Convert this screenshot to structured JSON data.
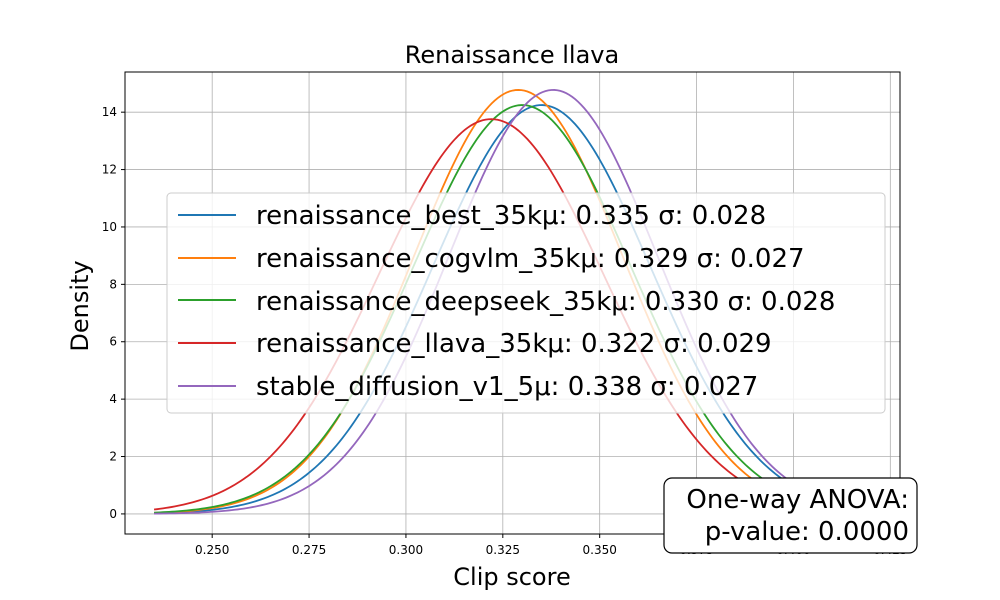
{
  "chart_data": {
    "type": "line",
    "title": "Renaissance llava",
    "xlabel": "Clip score",
    "ylabel": "Density",
    "xlim": [
      0.2275,
      0.4275
    ],
    "ylim": [
      -0.7,
      15.4
    ],
    "xticks": [
      0.25,
      0.275,
      0.3,
      0.325,
      0.35,
      0.375,
      0.4,
      0.425
    ],
    "xtick_labels": [
      "0.250",
      "0.275",
      "0.300",
      "0.325",
      "0.350",
      "0.375",
      "0.400",
      "0.425"
    ],
    "yticks": [
      0,
      2,
      4,
      6,
      8,
      10,
      12,
      14
    ],
    "ytick_labels": [
      "0",
      "2",
      "4",
      "6",
      "8",
      "10",
      "12",
      "14"
    ],
    "grid": true,
    "x_range": [
      0.235,
      0.42
    ],
    "legend_position": "center",
    "series": [
      {
        "name": "renaissance_best_35k",
        "mean": 0.335,
        "std": 0.028,
        "color": "#1f77b4",
        "label": "renaissance_best_35kμ: 0.335 σ: 0.028"
      },
      {
        "name": "renaissance_cogvlm_35k",
        "mean": 0.329,
        "std": 0.027,
        "color": "#ff7f0e",
        "label": "renaissance_cogvlm_35kμ: 0.329 σ: 0.027"
      },
      {
        "name": "renaissance_deepseek_35k",
        "mean": 0.33,
        "std": 0.028,
        "color": "#2ca02c",
        "label": "renaissance_deepseek_35kμ: 0.330 σ: 0.028"
      },
      {
        "name": "renaissance_llava_35k",
        "mean": 0.322,
        "std": 0.029,
        "color": "#d62728",
        "label": "renaissance_llava_35kμ: 0.322 σ: 0.029"
      },
      {
        "name": "stable_diffusion_v1_5",
        "mean": 0.338,
        "std": 0.027,
        "color": "#9467bd",
        "label": "stable_diffusion_v1_5μ: 0.338 σ: 0.027"
      }
    ],
    "annotation": {
      "line1": "One-way ANOVA:",
      "line2": "p-value: 0.0000"
    }
  }
}
